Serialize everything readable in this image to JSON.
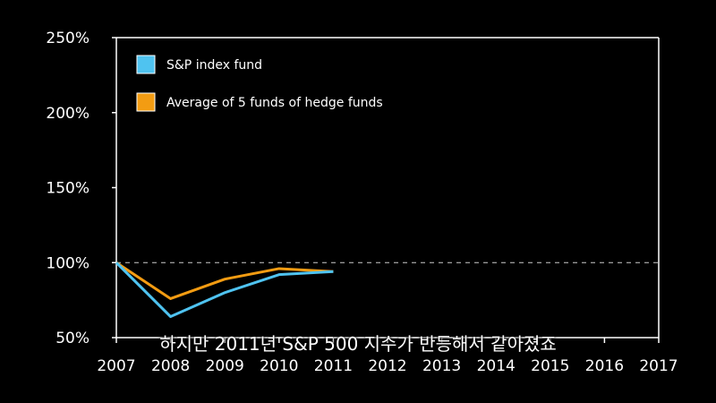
{
  "chart_data": {
    "type": "line",
    "x": [
      2007,
      2008,
      2009,
      2010,
      2011,
      2012,
      2013,
      2014,
      2015,
      2016,
      2017
    ],
    "y_ticks": [
      "50%",
      "100%",
      "150%",
      "200%",
      "250%"
    ],
    "y_tick_values": [
      50,
      100,
      150,
      200,
      250
    ],
    "ylim": [
      50,
      250
    ],
    "xlim": [
      2007,
      2017
    ],
    "reference_line": 100,
    "series": [
      {
        "name": "S&P index fund",
        "color": "#4fc3f0",
        "x": [
          2007,
          2008,
          2009,
          2010,
          2011
        ],
        "values": [
          100,
          64,
          80,
          92,
          94
        ]
      },
      {
        "name": "Average of 5 funds of hedge funds",
        "color": "#f39c12",
        "x": [
          2007,
          2008,
          2009,
          2010,
          2011
        ],
        "values": [
          100,
          76,
          89,
          96,
          94
        ]
      }
    ],
    "legend_position": "top-left",
    "grid": false
  },
  "caption": "하지만 2011년 S&P 500 지수가 반등해서 같아졌죠"
}
